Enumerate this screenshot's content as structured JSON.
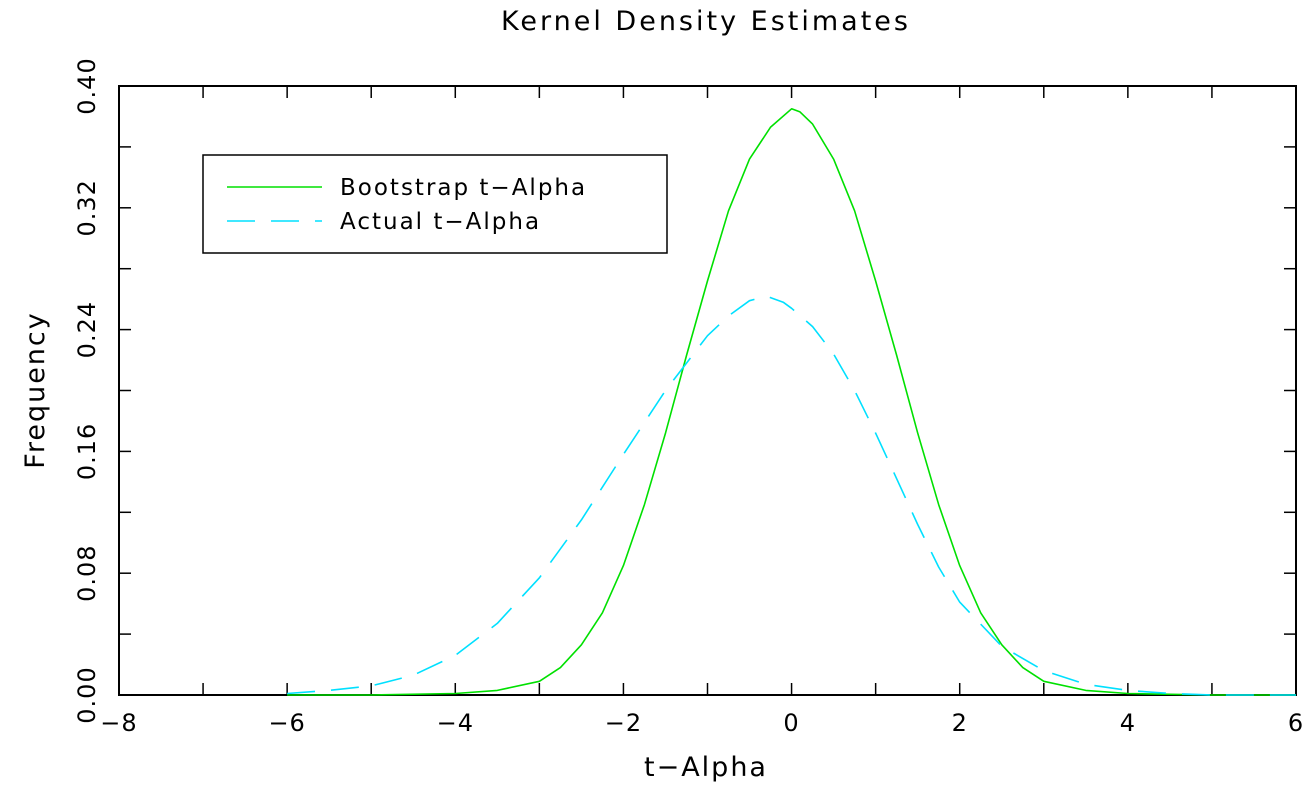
{
  "chart_data": {
    "type": "line",
    "title": "Kernel Density Estimates",
    "xlabel": "t−Alpha",
    "ylabel": "Frequency",
    "xlim": [
      -8,
      6
    ],
    "ylim": [
      0,
      0.4
    ],
    "xticks": [
      -8,
      -6,
      -4,
      -2,
      0,
      2,
      4,
      6
    ],
    "xtick_labels": [
      "−8",
      "−6",
      "−4",
      "−2",
      "0",
      "2",
      "4",
      "6"
    ],
    "yticks": [
      0,
      0.08,
      0.16,
      0.24,
      0.32,
      0.4
    ],
    "ytick_labels": [
      "0.00",
      "0.08",
      "0.16",
      "0.24",
      "0.32",
      "0.40"
    ],
    "legend_position": "top-left",
    "grid": false,
    "series": [
      {
        "name": "Bootstrap t−Alpha",
        "color": "#00e000",
        "dash": "solid",
        "points": [
          [
            -6.0,
            0.0
          ],
          [
            -5.0,
            0.0
          ],
          [
            -4.0,
            0.001
          ],
          [
            -3.5,
            0.003
          ],
          [
            -3.0,
            0.009
          ],
          [
            -2.75,
            0.018
          ],
          [
            -2.5,
            0.033
          ],
          [
            -2.25,
            0.054
          ],
          [
            -2.0,
            0.085
          ],
          [
            -1.75,
            0.125
          ],
          [
            -1.5,
            0.172
          ],
          [
            -1.25,
            0.223
          ],
          [
            -1.0,
            0.272
          ],
          [
            -0.75,
            0.318
          ],
          [
            -0.5,
            0.352
          ],
          [
            -0.25,
            0.373
          ],
          [
            0.0,
            0.385
          ],
          [
            0.1,
            0.383
          ],
          [
            0.25,
            0.375
          ],
          [
            0.5,
            0.352
          ],
          [
            0.75,
            0.318
          ],
          [
            1.0,
            0.272
          ],
          [
            1.25,
            0.223
          ],
          [
            1.5,
            0.172
          ],
          [
            1.75,
            0.125
          ],
          [
            2.0,
            0.085
          ],
          [
            2.25,
            0.054
          ],
          [
            2.5,
            0.033
          ],
          [
            2.75,
            0.018
          ],
          [
            3.0,
            0.009
          ],
          [
            3.5,
            0.003
          ],
          [
            4.0,
            0.001
          ],
          [
            5.0,
            0.0
          ],
          [
            6.0,
            0.0
          ]
        ]
      },
      {
        "name": "Actual t−Alpha",
        "color": "#00e0ff",
        "dash": "dashed",
        "points": [
          [
            -6.0,
            0.001
          ],
          [
            -5.5,
            0.003
          ],
          [
            -5.0,
            0.006
          ],
          [
            -4.5,
            0.013
          ],
          [
            -4.0,
            0.026
          ],
          [
            -3.5,
            0.047
          ],
          [
            -3.0,
            0.077
          ],
          [
            -2.5,
            0.115
          ],
          [
            -2.0,
            0.158
          ],
          [
            -1.5,
            0.2
          ],
          [
            -1.0,
            0.236
          ],
          [
            -0.75,
            0.249
          ],
          [
            -0.5,
            0.259
          ],
          [
            -0.3,
            0.262
          ],
          [
            -0.1,
            0.258
          ],
          [
            0.0,
            0.254
          ],
          [
            0.25,
            0.242
          ],
          [
            0.5,
            0.224
          ],
          [
            0.75,
            0.2
          ],
          [
            1.0,
            0.172
          ],
          [
            1.25,
            0.142
          ],
          [
            1.5,
            0.112
          ],
          [
            1.75,
            0.084
          ],
          [
            2.0,
            0.061
          ],
          [
            2.5,
            0.032
          ],
          [
            3.0,
            0.016
          ],
          [
            3.5,
            0.007
          ],
          [
            4.0,
            0.003
          ],
          [
            4.5,
            0.001
          ],
          [
            5.0,
            0.0
          ],
          [
            6.0,
            0.0
          ]
        ]
      }
    ]
  }
}
